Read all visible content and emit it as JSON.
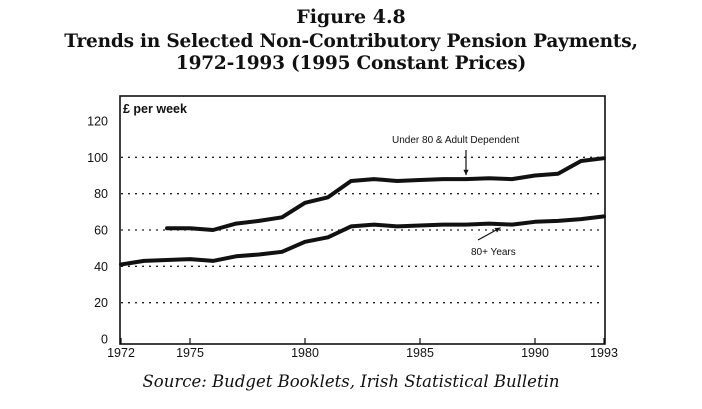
{
  "figure": {
    "label": "Figure 4.8",
    "title_line1": "Trends in Selected Non-Contributory Pension Payments,",
    "title_line2": "1972-1993 (1995 Constant Prices)",
    "source": "Source: Budget Booklets, Irish Statistical Bulletin"
  },
  "chart_data": {
    "type": "line",
    "title": "Trends in Selected Non-Contributory Pension Payments, 1972-1993 (1995 Constant Prices)",
    "xlabel": "",
    "ylabel": "£ per week",
    "xlim": [
      1972,
      1993
    ],
    "ylim": [
      0,
      120
    ],
    "x_ticks": [
      1972,
      1975,
      1980,
      1985,
      1990,
      1993
    ],
    "y_ticks": [
      0,
      20,
      40,
      60,
      80,
      100,
      120
    ],
    "grid": "horizontal-dotted",
    "series": [
      {
        "name": "Under 80 & Adult Dependent",
        "x": [
          1974,
          1975,
          1976,
          1977,
          1978,
          1979,
          1980,
          1981,
          1982,
          1983,
          1984,
          1985,
          1986,
          1987,
          1988,
          1989,
          1990,
          1991,
          1992,
          1993
        ],
        "values": [
          61,
          61,
          60,
          63.5,
          65,
          67,
          75,
          78,
          87,
          88,
          87,
          87.5,
          88,
          88,
          88.5,
          88,
          90,
          91,
          98,
          99.5
        ]
      },
      {
        "name": "80+ Years",
        "x": [
          1972,
          1973,
          1974,
          1975,
          1976,
          1977,
          1978,
          1979,
          1980,
          1981,
          1982,
          1983,
          1984,
          1985,
          1986,
          1987,
          1988,
          1989,
          1990,
          1991,
          1992,
          1993
        ],
        "values": [
          41,
          43,
          43.5,
          44,
          43,
          45.5,
          46.5,
          48,
          53.5,
          56,
          62,
          63,
          62,
          62.5,
          63,
          63,
          63.5,
          63,
          64.5,
          65,
          66,
          67.5
        ]
      }
    ],
    "annotations": [
      {
        "text": "Under 80 & Adult Dependent",
        "points_to": {
          "x": 1987,
          "y": 88
        }
      },
      {
        "text": "80+ Years",
        "points_to": {
          "x": 1988.5,
          "y": 63.5
        }
      }
    ]
  }
}
